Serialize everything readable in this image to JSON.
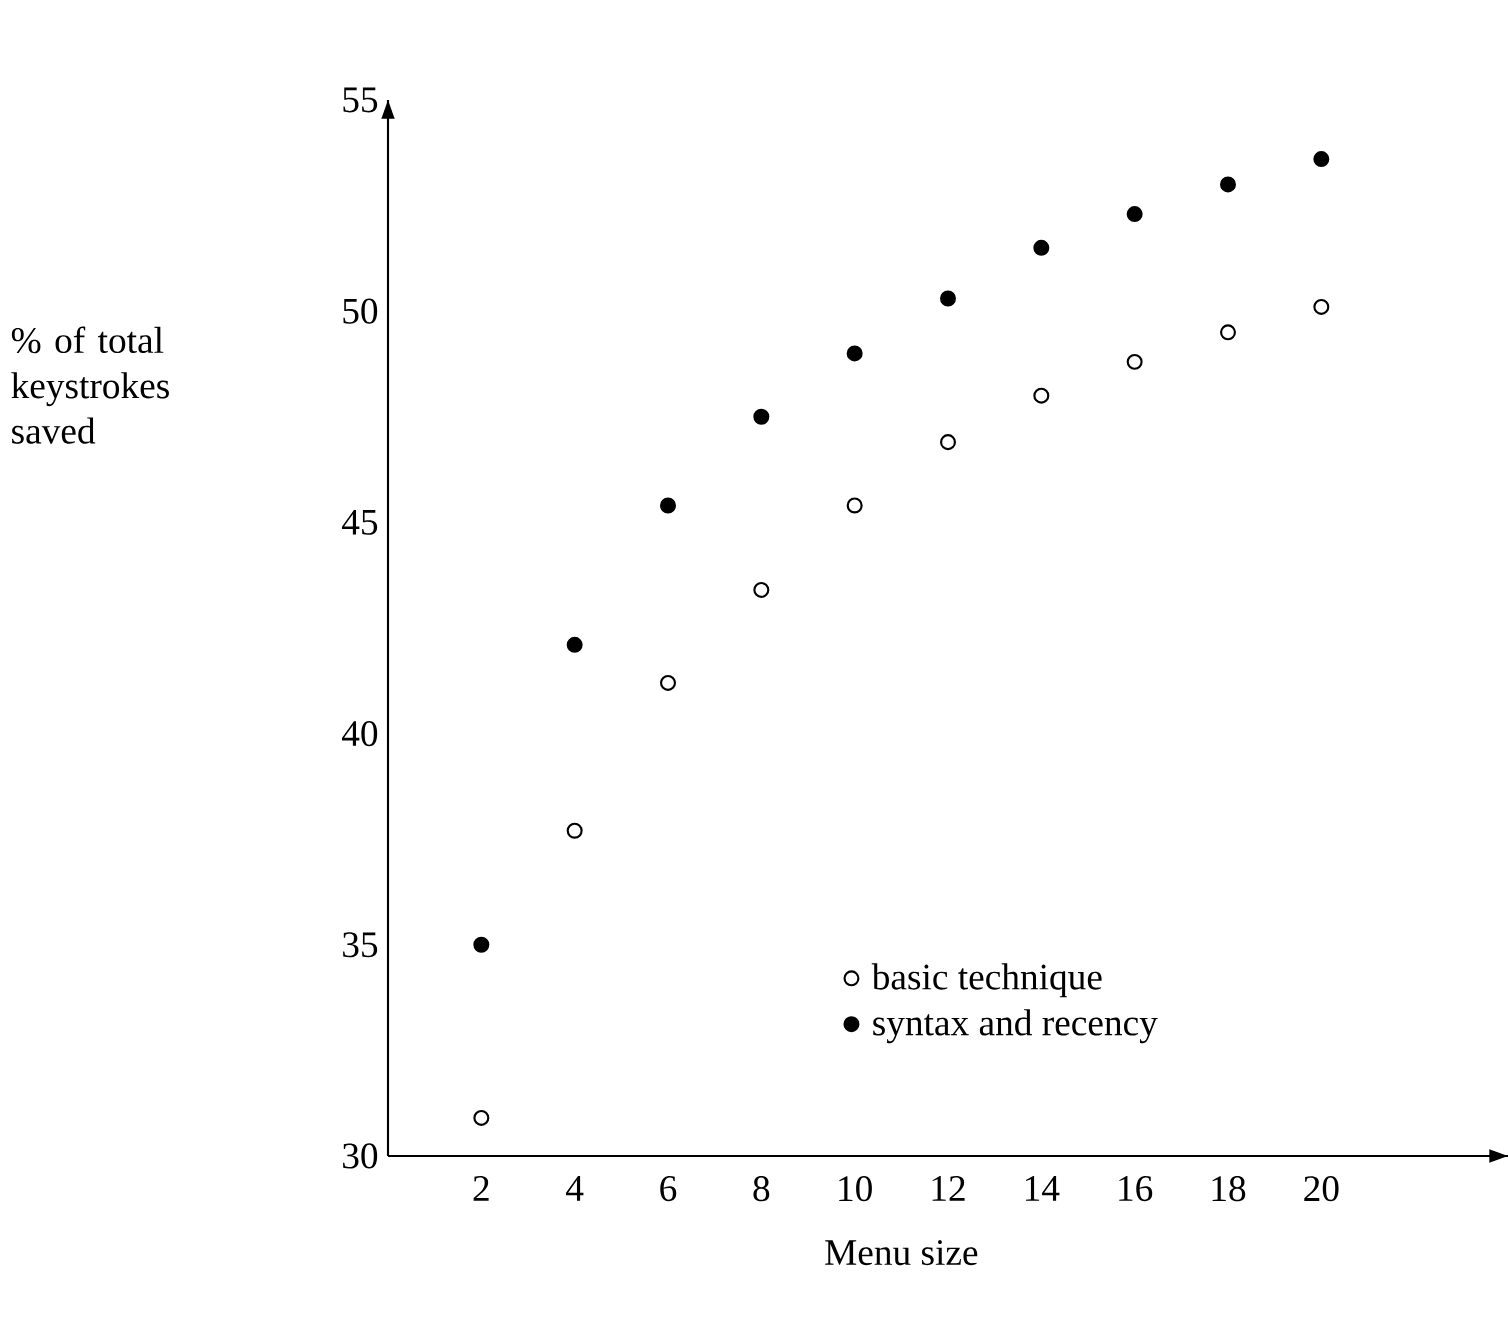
{
  "chart_data": {
    "type": "scatter",
    "xlabel": "Menu size",
    "ylabel": "% of total keystrokes saved",
    "x": [
      2,
      4,
      6,
      8,
      10,
      12,
      14,
      16,
      18,
      20
    ],
    "series": [
      {
        "name": "basic technique",
        "color": "#ffffff",
        "values": [
          30.9,
          37.7,
          41.2,
          43.4,
          45.4,
          46.9,
          48.0,
          48.8,
          49.5,
          50.1
        ]
      },
      {
        "name": "syntax and recency",
        "color": "#000000",
        "values": [
          35.0,
          42.1,
          45.4,
          47.5,
          49.0,
          50.3,
          51.5,
          52.3,
          53.0,
          53.6
        ]
      }
    ],
    "xlim": [
      0,
      24
    ],
    "ylim": [
      30,
      55
    ],
    "xticks": [
      2,
      4,
      6,
      8,
      10,
      12,
      14,
      16,
      18,
      20
    ],
    "yticks": [
      30,
      35,
      40,
      45,
      50,
      55
    ],
    "legend": "bottom"
  }
}
